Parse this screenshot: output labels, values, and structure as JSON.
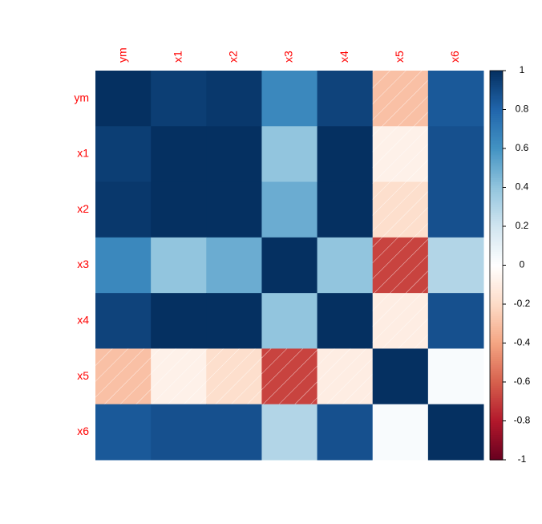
{
  "chart_data": {
    "type": "heatmap",
    "categories": [
      "ym",
      "x1",
      "x2",
      "x3",
      "x4",
      "x5",
      "x6"
    ],
    "values": [
      [
        1,
        0.95,
        0.97,
        0.65,
        0.93,
        -0.3,
        0.85
      ],
      [
        0.95,
        1,
        1,
        0.4,
        1,
        -0.08,
        0.88
      ],
      [
        0.97,
        1,
        1,
        0.5,
        1,
        -0.18,
        0.88
      ],
      [
        0.65,
        0.4,
        0.5,
        1,
        0.4,
        -0.68,
        0.3
      ],
      [
        0.93,
        1,
        1,
        0.4,
        1,
        -0.1,
        0.88
      ],
      [
        -0.3,
        -0.08,
        -0.18,
        -0.68,
        -0.1,
        1,
        0.03
      ],
      [
        0.85,
        0.88,
        0.88,
        0.3,
        0.88,
        0.03,
        1
      ]
    ],
    "colorscale": [
      "#67001F",
      "#B2182B",
      "#D6604D",
      "#F4A582",
      "#FDDBC7",
      "#FFFFFF",
      "#D1E5F0",
      "#92C5DE",
      "#4393C3",
      "#2166AC",
      "#053061"
    ],
    "label_color": "#ff0000",
    "clim": [
      -1,
      1
    ],
    "cticks": [
      -1,
      -0.8,
      -0.6,
      -0.4,
      -0.2,
      0,
      0.2,
      0.4,
      0.6,
      0.8,
      1
    ]
  }
}
